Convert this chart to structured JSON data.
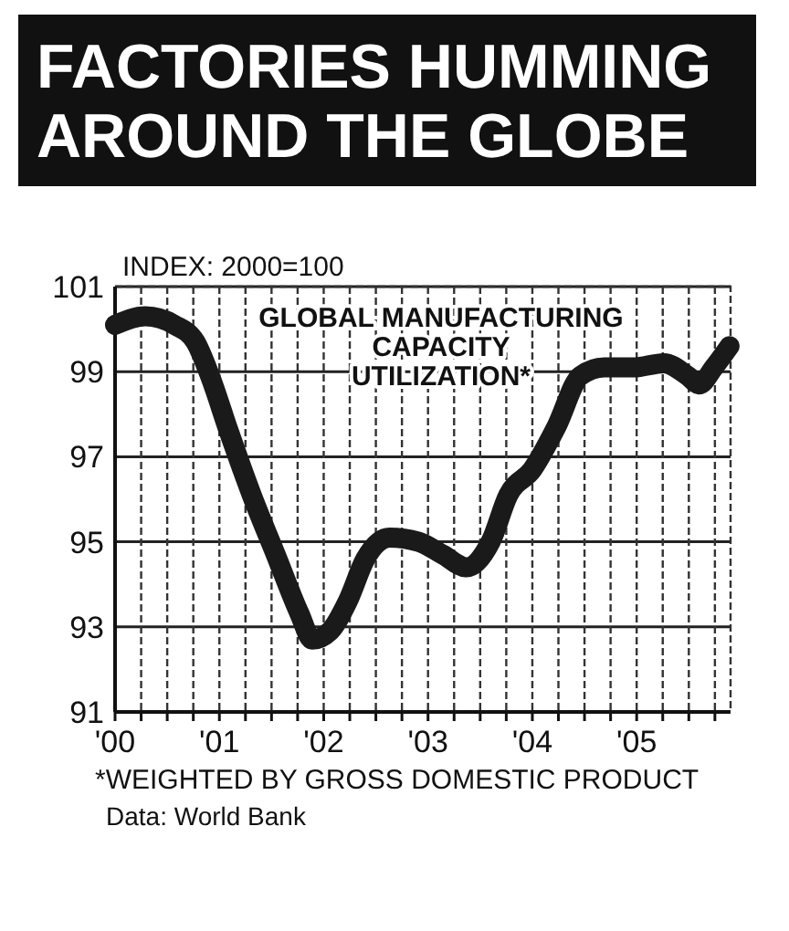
{
  "chart_data": {
    "type": "line",
    "title": "FACTORIES HUMMING AROUND THE GLOBE",
    "subtitle": "GLOBAL MANUFACTURING CAPACITY UTILIZATION*",
    "ylabel": "INDEX: 2000=100",
    "x": [
      2000,
      2000.29,
      2000.57,
      2000.77,
      2000.91,
      2001.09,
      2001.31,
      2001.54,
      2001.77,
      2001.89,
      2002.06,
      2002.23,
      2002.4,
      2002.63,
      2002.91,
      2003.14,
      2003.37,
      2003.6,
      2003.77,
      2004,
      2004.23,
      2004.46,
      2004.69,
      2004.97,
      2005.26,
      2005.49,
      2005.6,
      2005.74,
      2005.89
    ],
    "series": [
      {
        "color": "#1a1a1a",
        "values": [
          100.1,
          100.3,
          100.1,
          99.7,
          98.9,
          97.6,
          96.1,
          94.7,
          93.3,
          92.7,
          92.9,
          93.6,
          94.6,
          95.1,
          95.0,
          94.7,
          94.4,
          95.0,
          96.1,
          96.7,
          97.7,
          98.9,
          99.1,
          99.1,
          99.2,
          98.9,
          98.7,
          99.1,
          99.6
        ]
      }
    ],
    "xlim": [
      2000,
      2005.9
    ],
    "xticks": [
      {
        "value": 2000,
        "label": "'00"
      },
      {
        "value": 2000.25,
        "label": null
      },
      {
        "value": 2000.5,
        "label": null
      },
      {
        "value": 2000.75,
        "label": null
      },
      {
        "value": 2001,
        "label": "'01"
      },
      {
        "value": 2001.25,
        "label": null
      },
      {
        "value": 2001.5,
        "label": null
      },
      {
        "value": 2001.75,
        "label": null
      },
      {
        "value": 2002,
        "label": "'02"
      },
      {
        "value": 2002.25,
        "label": null
      },
      {
        "value": 2002.5,
        "label": null
      },
      {
        "value": 2002.75,
        "label": null
      },
      {
        "value": 2003,
        "label": "'03"
      },
      {
        "value": 2003.25,
        "label": null
      },
      {
        "value": 2003.5,
        "label": null
      },
      {
        "value": 2003.75,
        "label": null
      },
      {
        "value": 2004,
        "label": "'04"
      },
      {
        "value": 2004.25,
        "label": null
      },
      {
        "value": 2004.5,
        "label": null
      },
      {
        "value": 2004.75,
        "label": null
      },
      {
        "value": 2005,
        "label": "'05"
      },
      {
        "value": 2005.25,
        "label": null
      },
      {
        "value": 2005.5,
        "label": null
      },
      {
        "value": 2005.75,
        "label": null
      }
    ],
    "ylim": [
      91,
      101
    ],
    "yticks": [
      91,
      93,
      95,
      97,
      99,
      101
    ],
    "grid": true,
    "line_style": "solid",
    "annotations": [
      "*WEIGHTED BY GROSS DOMESTIC PRODUCT",
      "Data: World Bank"
    ]
  }
}
